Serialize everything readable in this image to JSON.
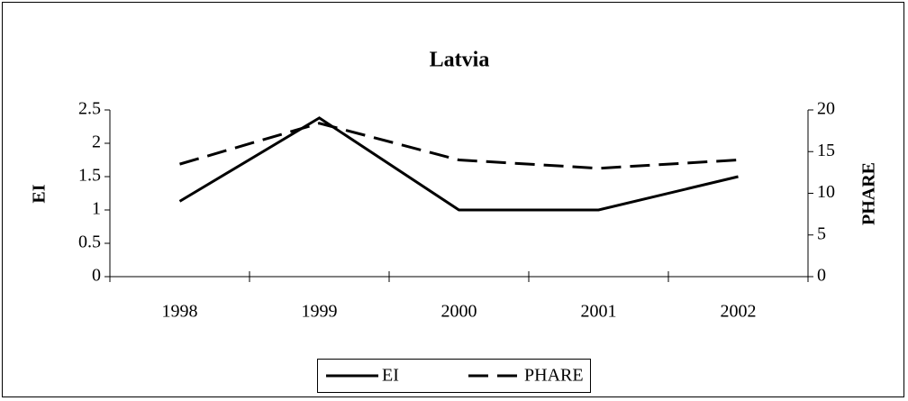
{
  "chart_data": {
    "type": "line",
    "title": "Latvia",
    "categories": [
      "1998",
      "1999",
      "2000",
      "2001",
      "2002"
    ],
    "series": [
      {
        "name": "EI",
        "color": "#000000",
        "values": [
          1.13,
          2.38,
          1,
          1,
          1.5
        ],
        "axis": "y"
      },
      {
        "name": "PHARE",
        "color": "#000000",
        "values": [
          13.5,
          18.4,
          14,
          13,
          14
        ],
        "axis": "y2",
        "dashed": true
      }
    ],
    "ylabel": "EI",
    "y2label": "PHARE",
    "ylim": [
      0,
      2.5
    ],
    "yticks": [
      0,
      0.5,
      1,
      1.5,
      2,
      2.5
    ],
    "y2lim": [
      0,
      20
    ],
    "y2ticks": [
      0,
      5,
      10,
      15,
      20
    ],
    "grid": false,
    "legend": "bottom"
  }
}
